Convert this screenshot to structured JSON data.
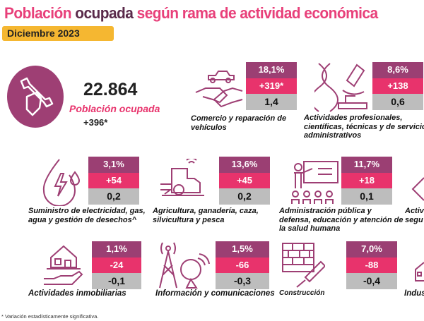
{
  "title": {
    "part1": "Población ",
    "part2": "ocupada",
    "part3": " según rama de actividad económica"
  },
  "date": "Diciembre 2023",
  "summary": {
    "total": "22.864",
    "label": "Población ocupada",
    "variation": "+396*",
    "icon": "wrench-hand-icon"
  },
  "colors": {
    "share": "#9b3f73",
    "variation": "#e8336c",
    "contribution": "#bdbdbd",
    "accent": "#e8407a",
    "badge": "#f5b731"
  },
  "sectors": [
    {
      "name": "Comercio y reparación de vehículos",
      "lines": [
        "Comercio y reparación de",
        "vehículos"
      ],
      "share": "18,1%",
      "variation": "+319*",
      "contribution": "1,4",
      "icon": "handshake-car-icon"
    },
    {
      "name": "Actividades profesionales, científicas, técnicas y de servicios administrativos",
      "lines": [
        "Actividades profesionales,",
        "científicas, técnicas y de servicios",
        "administrativos"
      ],
      "share": "8,6%",
      "variation": "+138",
      "contribution": "0,6",
      "icon": "dna-microscope-icon"
    },
    {
      "name": "Suministro de electricidad, gas, agua y gestión de desechos^",
      "lines": [
        "Suministro de electricidad, gas,",
        "agua y gestión de desechos^"
      ],
      "share": "3,1%",
      "variation": "+54",
      "contribution": "0,2",
      "icon": "water-drop-bolt-icon"
    },
    {
      "name": "Agricultura, ganadería, caza, silvicultura y pesca",
      "lines": [
        "Agricultura, ganadería, caza,",
        "silvicultura y pesca"
      ],
      "share": "13,6%",
      "variation": "+45",
      "contribution": "0,2",
      "icon": "tractor-icon"
    },
    {
      "name": "Administración pública y defensa, educación y atención de la salud humana",
      "lines": [
        "Administración pública y",
        "defensa, educación y atención de",
        "la salud humana"
      ],
      "share": "11,7%",
      "variation": "+18",
      "contribution": "0,1",
      "icon": "teacher-board-icon"
    },
    {
      "name": "Actividades inmobiliarias",
      "lines": [
        "Actividades inmobiliarias"
      ],
      "share": "1,1%",
      "variation": "-24",
      "contribution": "-0,1",
      "icon": "house-hand-icon"
    },
    {
      "name": "Información y comunicaciones",
      "lines": [
        "Información y comunicaciones"
      ],
      "share": "1,5%",
      "variation": "-66",
      "contribution": "-0,3",
      "icon": "antenna-satellite-icon"
    },
    {
      "name": "Construcción",
      "lines": [
        "Construcción"
      ],
      "share": "7,0%",
      "variation": "-88",
      "contribution": "-0,4",
      "icon": "brick-trowel-icon"
    }
  ],
  "partial": {
    "row2_line1": "Activ",
    "row2_line2": "segu",
    "row3": "Indus"
  },
  "footnote": "* Variación estadísticamente significativa."
}
